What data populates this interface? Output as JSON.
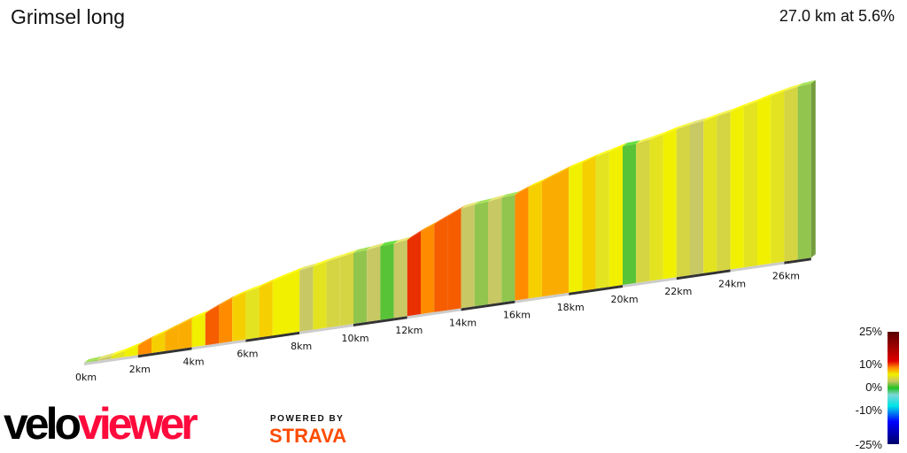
{
  "header": {
    "title": "Grimsel long",
    "summary": "27.0 km at 5.6%"
  },
  "chart_data": {
    "type": "area",
    "title": "Grimsel long",
    "distance_km": 27.0,
    "average_gradient_pct": 5.6,
    "segment_length_km": 0.5,
    "gradient_pct": [
      2,
      3,
      5,
      6,
      9,
      7,
      8,
      8,
      6,
      10,
      9,
      7,
      5,
      7,
      6,
      6,
      3,
      5,
      4,
      4,
      2,
      3,
      1,
      3,
      11,
      9,
      10,
      10,
      3,
      2,
      3,
      2,
      9,
      7,
      8,
      8,
      6,
      7,
      5,
      6,
      1,
      4,
      5,
      6,
      4,
      3,
      5,
      4,
      6,
      5,
      6,
      5,
      4,
      2
    ],
    "x_ticks": [
      "0km",
      "2km",
      "4km",
      "6km",
      "8km",
      "10km",
      "12km",
      "14km",
      "16km",
      "18km",
      "20km",
      "22km",
      "24km",
      "26km"
    ],
    "color_scale": {
      "labels": [
        "25%",
        "10%",
        "0%",
        "-10%",
        "-25%"
      ],
      "stops": [
        {
          "pct": 25,
          "color": "#5a0000"
        },
        {
          "pct": 12,
          "color": "#e00000"
        },
        {
          "pct": 9,
          "color": "#ff8c00"
        },
        {
          "pct": 6,
          "color": "#f0f000"
        },
        {
          "pct": 3,
          "color": "#c8c864"
        },
        {
          "pct": 0,
          "color": "#22c022"
        },
        {
          "pct": -3,
          "color": "#7fd6d6"
        },
        {
          "pct": -8,
          "color": "#00e5e5"
        },
        {
          "pct": -15,
          "color": "#0000ff"
        },
        {
          "pct": -25,
          "color": "#00006a"
        }
      ]
    }
  },
  "branding": {
    "logo_velo": "velo",
    "logo_viewer": "viewer",
    "powered_by": "POWERED BY",
    "strava": "STRAVA"
  }
}
